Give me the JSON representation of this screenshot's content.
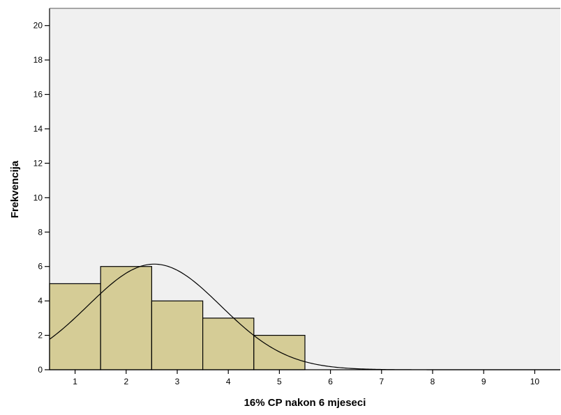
{
  "chart_data": {
    "type": "bar",
    "title": "",
    "xlabel": "16% CP nakon 6 mjeseci",
    "ylabel": "Frekvencija",
    "xlim": [
      0.5,
      10.5
    ],
    "ylim": [
      0,
      21
    ],
    "x_ticks": [
      1,
      2,
      3,
      4,
      5,
      6,
      7,
      8,
      9,
      10
    ],
    "y_ticks": [
      0,
      2,
      4,
      6,
      8,
      10,
      12,
      14,
      16,
      18,
      20
    ],
    "bins": [
      {
        "center": 1,
        "value": 5
      },
      {
        "center": 2,
        "value": 6
      },
      {
        "center": 3,
        "value": 4
      },
      {
        "center": 4,
        "value": 3
      },
      {
        "center": 5,
        "value": 2
      }
    ],
    "bin_width": 1,
    "normal_curve": {
      "mean": 2.55,
      "sd": 1.3,
      "n": 20
    },
    "grid": false,
    "colors": {
      "plot_background": "#f0f0f0",
      "bar_fill": "#d5cc96",
      "bar_stroke": "#000000",
      "curve": "#000000",
      "axis": "#000000"
    }
  }
}
